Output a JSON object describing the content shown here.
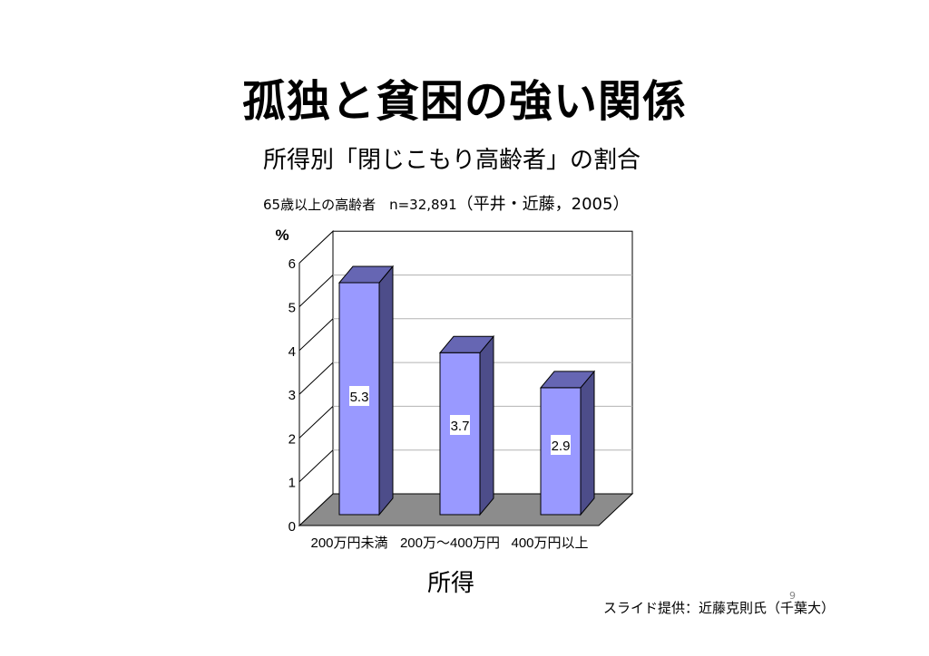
{
  "slide": {
    "title": "孤独と貧困の強い関係",
    "subtitle": "所得別「閉じこもり高齢者」の割合",
    "sample_prefix": "65歳以上の高齢者　n=32,891",
    "sample_source": "（平井・近藤，2005）",
    "credit": "スライド提供：近藤克則氏（千葉大）",
    "page_number": "9"
  },
  "chart_data": {
    "type": "bar",
    "style": "3d-column",
    "categories": [
      "200万円未満",
      "200万～400万円",
      "400万円以上"
    ],
    "values": [
      5.3,
      3.7,
      2.9
    ],
    "data_labels": [
      "5.3",
      "3.7",
      "2.9"
    ],
    "ylabel": "%",
    "xlabel": "所得",
    "ylim": [
      0,
      6
    ],
    "yticks": [
      "0",
      "1",
      "2",
      "3",
      "4",
      "5",
      "6"
    ],
    "grid": true,
    "legend": "none",
    "colors": {
      "bar_front": "#9999ff",
      "bar_side": "#4d4d8a",
      "bar_top": "#6666b3",
      "floor": "#8c8c8c",
      "grid": "#b3b3b3"
    }
  }
}
